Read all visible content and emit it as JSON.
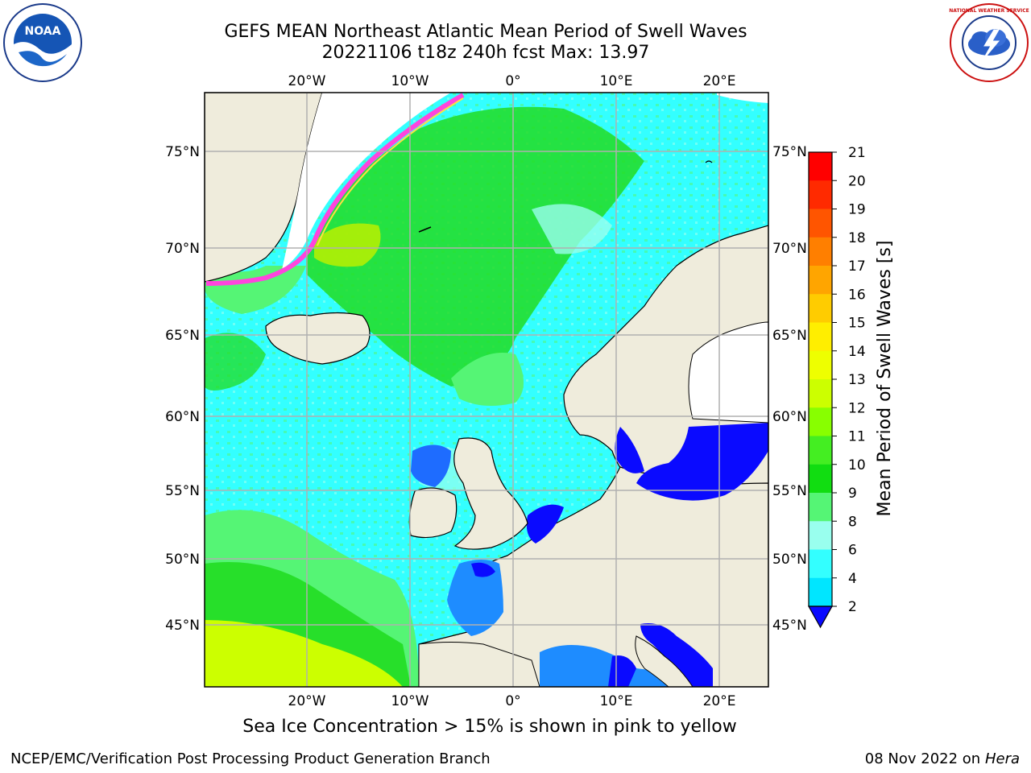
{
  "title": {
    "line1": "GEFS MEAN Northeast Atlantic Mean Period of Swell Waves",
    "line2": "20221106 t18z 240h fcst   Max: 13.97"
  },
  "note": "Sea Ice Concentration > 15% is shown in pink to yellow",
  "footer": {
    "left": "NCEP/EMC/Verification Post Processing Product Generation Branch",
    "right_date": "08 Nov 2022 on",
    "right_machine": "Hera"
  },
  "map": {
    "lon_ticks": [
      "20°W",
      "10°W",
      "0°",
      "10°E",
      "20°E"
    ],
    "lat_ticks": [
      "75°N",
      "70°N",
      "65°N",
      "60°N",
      "55°N",
      "50°N",
      "45°N"
    ],
    "colors": {
      "land": "#efecdc",
      "ice": "#ffffff",
      "ocean_light": "#33ffff",
      "ocean_mid": "#1fe6ff",
      "ocean_pale": "#99ffee",
      "green_light": "#55f575",
      "green": "#22dd22",
      "yellowgreen": "#ccff00",
      "blue": "#0a0aff",
      "blue_light": "#1e8cff",
      "ice_edge": "#ff44dd",
      "grid": "#b0b0b0"
    }
  },
  "colorbar": {
    "label": "Mean Period of Swell Waves [s]",
    "ticks": [
      "21",
      "20",
      "19",
      "18",
      "17",
      "16",
      "15",
      "14",
      "13",
      "12",
      "11",
      "10",
      "9",
      "8",
      "6",
      "4",
      "2"
    ],
    "colors": [
      "#ff0000",
      "#ff2a00",
      "#ff5500",
      "#ff7f00",
      "#ffa500",
      "#ffcc00",
      "#ffee00",
      "#eeff00",
      "#ccff00",
      "#88ff00",
      "#44ee22",
      "#11dd11",
      "#55f575",
      "#99ffee",
      "#33ffff",
      "#00e6ff",
      "#1e8cff",
      "#0a0aff"
    ]
  },
  "logos": {
    "noaa_text": "NOAA",
    "nws_text": "NATIONAL WEATHER SERVICE"
  }
}
